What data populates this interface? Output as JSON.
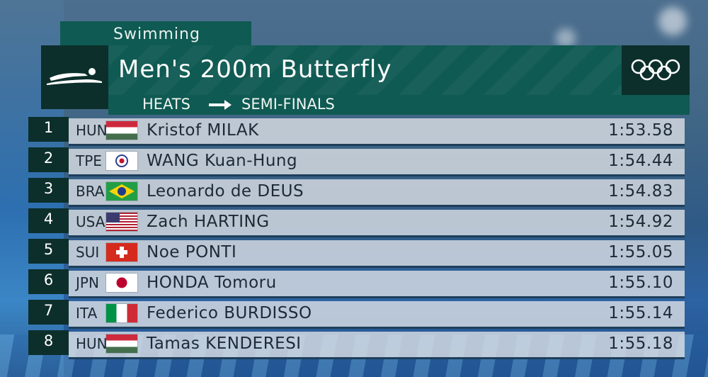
{
  "sport": "Swimming",
  "event_title": "Men's 200m Butterfly",
  "stage": {
    "from": "HEATS",
    "to": "SEMI-FINALS"
  },
  "colors": {
    "panel_green": "#0f5a52",
    "panel_dark": "#0c2f2b",
    "row_bg": "#e1e4e8",
    "text_dark": "#1d2a36"
  },
  "icons": {
    "sport": "swimmer-icon",
    "logo": "olympic-rings-icon",
    "arrow": "arrow-right-icon"
  },
  "results": [
    {
      "rank": "1",
      "noc": "HUN",
      "flag": "hun",
      "name": "Kristof MILAK",
      "time": "1:53.58"
    },
    {
      "rank": "2",
      "noc": "TPE",
      "flag": "tpe",
      "name": "WANG Kuan-Hung",
      "time": "1:54.44"
    },
    {
      "rank": "3",
      "noc": "BRA",
      "flag": "bra",
      "name": "Leonardo de DEUS",
      "time": "1:54.83"
    },
    {
      "rank": "4",
      "noc": "USA",
      "flag": "usa",
      "name": "Zach HARTING",
      "time": "1:54.92"
    },
    {
      "rank": "5",
      "noc": "SUI",
      "flag": "sui",
      "name": "Noe PONTI",
      "time": "1:55.05"
    },
    {
      "rank": "6",
      "noc": "JPN",
      "flag": "jpn",
      "name": "HONDA Tomoru",
      "time": "1:55.10"
    },
    {
      "rank": "7",
      "noc": "ITA",
      "flag": "ita",
      "name": "Federico BURDISSO",
      "time": "1:55.14"
    },
    {
      "rank": "8",
      "noc": "HUN",
      "flag": "hun",
      "name": "Tamas KENDERESI",
      "time": "1:55.18"
    }
  ]
}
